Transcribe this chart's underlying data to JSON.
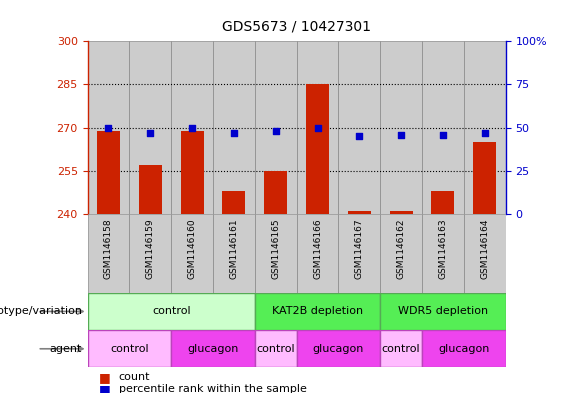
{
  "title": "GDS5673 / 10427301",
  "samples": [
    "GSM1146158",
    "GSM1146159",
    "GSM1146160",
    "GSM1146161",
    "GSM1146165",
    "GSM1146166",
    "GSM1146167",
    "GSM1146162",
    "GSM1146163",
    "GSM1146164"
  ],
  "counts": [
    269,
    257,
    269,
    248,
    255,
    285,
    241,
    241,
    248,
    265
  ],
  "percentiles_pct": [
    50,
    47,
    50,
    47,
    48,
    50,
    45,
    46,
    46,
    47
  ],
  "ymin": 240,
  "ymax": 300,
  "yticks": [
    240,
    255,
    270,
    285,
    300
  ],
  "y2ticks": [
    0,
    25,
    50,
    75,
    100
  ],
  "bar_color": "#cc2200",
  "dot_color": "#0000cc",
  "grid_lines": [
    255,
    270,
    285
  ],
  "genotype_groups": [
    {
      "label": "control",
      "start": 0,
      "end": 4,
      "color": "#ccffcc",
      "border": "#55aa55"
    },
    {
      "label": "KAT2B depletion",
      "start": 4,
      "end": 7,
      "color": "#55ee55",
      "border": "#55aa55"
    },
    {
      "label": "WDR5 depletion",
      "start": 7,
      "end": 10,
      "color": "#55ee55",
      "border": "#55aa55"
    }
  ],
  "agent_groups": [
    {
      "label": "control",
      "start": 0,
      "end": 2,
      "color": "#ffbbff",
      "border": "#bb44bb"
    },
    {
      "label": "glucagon",
      "start": 2,
      "end": 4,
      "color": "#ee44ee",
      "border": "#bb44bb"
    },
    {
      "label": "control",
      "start": 4,
      "end": 5,
      "color": "#ffbbff",
      "border": "#bb44bb"
    },
    {
      "label": "glucagon",
      "start": 5,
      "end": 7,
      "color": "#ee44ee",
      "border": "#bb44bb"
    },
    {
      "label": "control",
      "start": 7,
      "end": 8,
      "color": "#ffbbff",
      "border": "#bb44bb"
    },
    {
      "label": "glucagon",
      "start": 8,
      "end": 10,
      "color": "#ee44ee",
      "border": "#bb44bb"
    }
  ],
  "genotype_label": "genotype/variation",
  "agent_label": "agent",
  "legend_count_label": "count",
  "legend_pct_label": "percentile rank within the sample",
  "cell_bg_color": "#cccccc",
  "cell_border_color": "#888888"
}
